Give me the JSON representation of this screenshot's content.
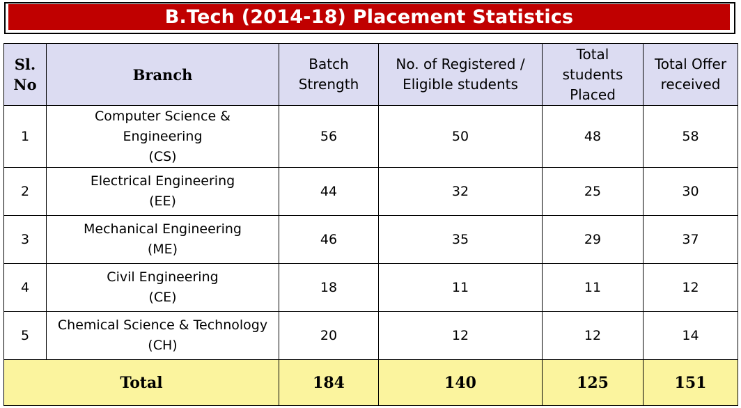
{
  "title": "B.Tech (2014-18) Placement Statistics",
  "columns": {
    "sl_no_line1": "Sl.",
    "sl_no_line2": "No",
    "branch": "Branch",
    "batch_strength_line1": "Batch",
    "batch_strength_line2": "Strength",
    "registered_line1": "No. of Registered /",
    "registered_line2": "Eligible students",
    "placed_line1": "Total",
    "placed_line2": "students",
    "placed_line3": "Placed",
    "offers_line1": "Total Offer",
    "offers_line2": "received"
  },
  "rows": [
    {
      "sl_no": "1",
      "branch_lines": [
        "Computer Science &",
        "Engineering",
        "(CS)"
      ],
      "batch_strength": "56",
      "registered": "50",
      "placed": "48",
      "offers": "58"
    },
    {
      "sl_no": "2",
      "branch_lines": [
        "Electrical Engineering",
        "(EE)"
      ],
      "batch_strength": "44",
      "registered": "32",
      "placed": "25",
      "offers": "30"
    },
    {
      "sl_no": "3",
      "branch_lines": [
        "Mechanical Engineering",
        "(ME)"
      ],
      "batch_strength": "46",
      "registered": "35",
      "placed": "29",
      "offers": "37"
    },
    {
      "sl_no": "4",
      "branch_lines": [
        "Civil Engineering",
        "(CE)"
      ],
      "batch_strength": "18",
      "registered": "11",
      "placed": "11",
      "offers": "12"
    },
    {
      "sl_no": "5",
      "branch_lines": [
        "Chemical Science & Technology",
        "(CH)"
      ],
      "batch_strength": "20",
      "registered": "12",
      "placed": "12",
      "offers": "14"
    }
  ],
  "total": {
    "label": "Total",
    "batch_strength": "184",
    "registered": "140",
    "placed": "125",
    "offers": "151"
  },
  "colors": {
    "title_bar": "#c00000",
    "header_bg": "#dcdcf2",
    "total_bg": "#fbf49e"
  }
}
